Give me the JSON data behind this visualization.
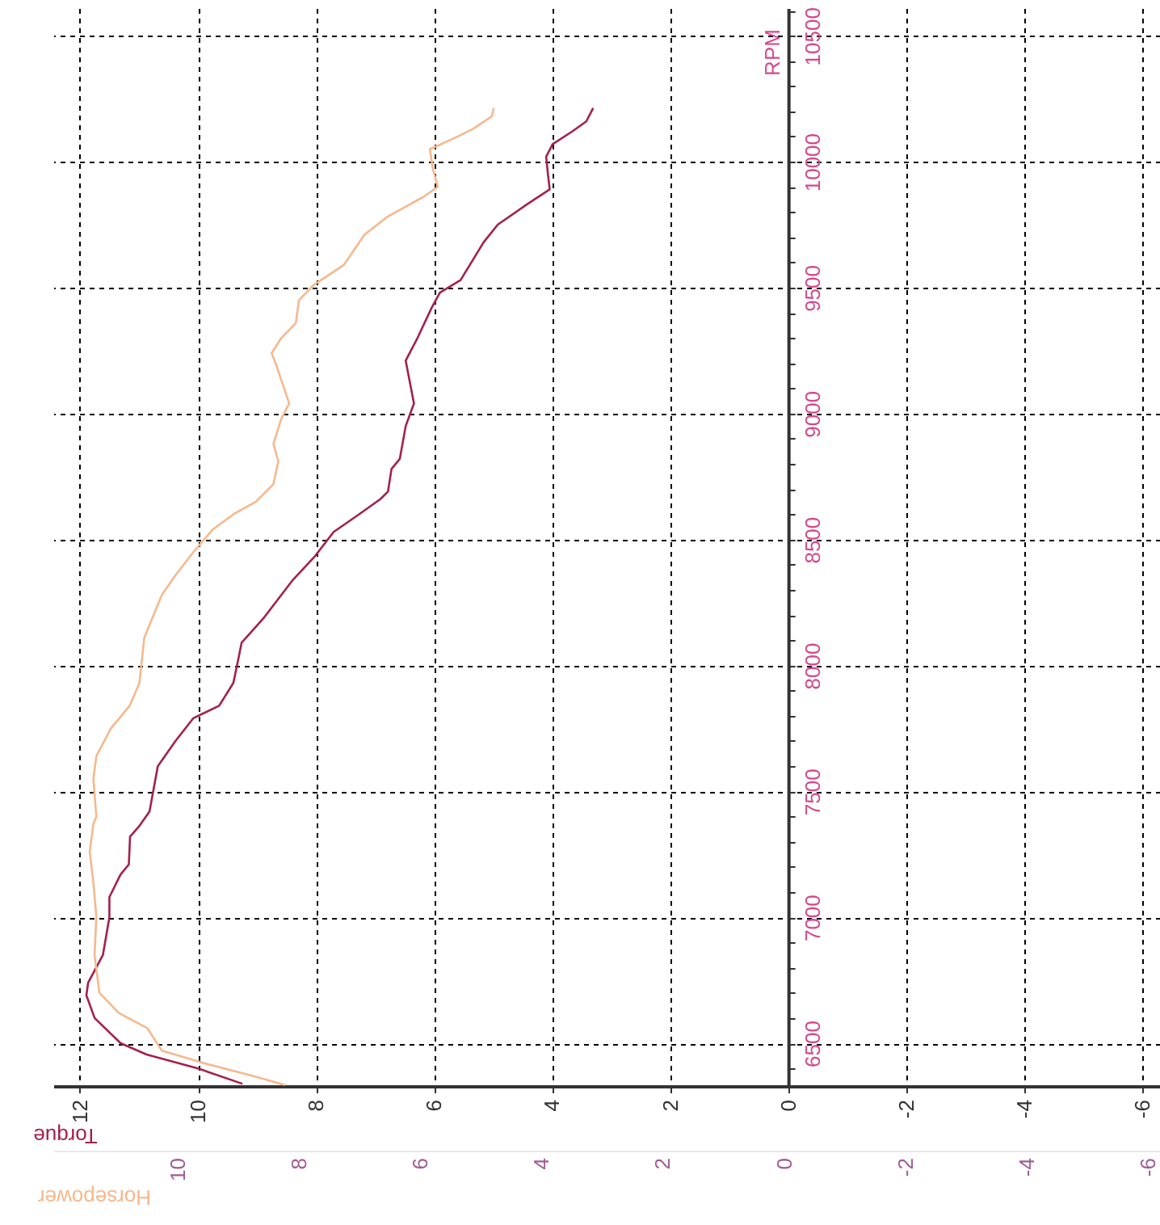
{
  "chart_data": {
    "type": "line",
    "xlabel": "Torque",
    "x2label": "Horsepower",
    "ylabel": "RPM",
    "xlim": [
      12.45,
      -6.3
    ],
    "xticks": [
      12,
      10,
      8,
      6,
      4,
      2,
      0,
      -2,
      -4,
      -6
    ],
    "x2lim": [
      12.05,
      -6.2
    ],
    "x2ticks": [
      10,
      8,
      6,
      4,
      2,
      0,
      -2,
      -4,
      -6
    ],
    "ylim": [
      6330,
      10610
    ],
    "yticks": [
      {
        "value": 6400,
        "label": null
      },
      6500,
      {
        "value": 6600,
        "label": null
      },
      {
        "value": 6700,
        "label": null
      },
      {
        "value": 6800,
        "label": null
      },
      {
        "value": 6900,
        "label": null
      },
      7000,
      {
        "value": 7100,
        "label": null
      },
      {
        "value": 7200,
        "label": null
      },
      {
        "value": 7300,
        "label": null
      },
      {
        "value": 7400,
        "label": null
      },
      7500,
      {
        "value": 7600,
        "label": null
      },
      {
        "value": 7700,
        "label": null
      },
      {
        "value": 7800,
        "label": null
      },
      {
        "value": 7900,
        "label": null
      },
      8000,
      {
        "value": 8100,
        "label": null
      },
      {
        "value": 8200,
        "label": null
      },
      {
        "value": 8300,
        "label": null
      },
      {
        "value": 8400,
        "label": null
      },
      8500,
      {
        "value": 8600,
        "label": null
      },
      {
        "value": 8700,
        "label": null
      },
      {
        "value": 8800,
        "label": null
      },
      {
        "value": 8900,
        "label": null
      },
      9000,
      {
        "value": 9100,
        "label": null
      },
      {
        "value": 9200,
        "label": null
      },
      {
        "value": 9300,
        "label": null
      },
      {
        "value": 9400,
        "label": null
      },
      9500,
      {
        "value": 9600,
        "label": null
      },
      {
        "value": 9700,
        "label": null
      },
      {
        "value": 9800,
        "label": null
      },
      {
        "value": 9900,
        "label": null
      },
      10000,
      {
        "value": 10100,
        "label": null
      },
      {
        "value": 10200,
        "label": null
      },
      {
        "value": 10300,
        "label": null
      },
      {
        "value": 10400,
        "label": null
      },
      10500,
      {
        "value": 10600,
        "label": null
      }
    ],
    "grid": true,
    "series": [
      {
        "color": "#a3214b",
        "x": [
          9.26,
          10.0,
          10.87,
          11.31,
          11.75,
          11.89,
          11.86,
          11.61,
          11.5,
          11.5,
          11.31,
          11.17,
          11.15,
          11.0,
          10.82,
          10.68,
          10.38,
          10.08,
          9.64,
          9.4,
          9.32,
          9.26,
          8.88,
          8.39,
          8.03,
          7.7,
          7.27,
          6.91,
          6.78,
          6.72,
          6.58,
          6.48,
          6.34,
          6.48,
          6.28,
          6.04,
          5.9,
          5.55,
          5.16,
          4.92,
          4.43,
          4.04,
          4.07,
          4.1,
          3.99,
          3.66,
          3.42,
          3.31
        ],
        "values": [
          6340,
          6400,
          6455,
          6500,
          6600,
          6690,
          6740,
          6850,
          7000,
          7080,
          7170,
          7210,
          7320,
          7360,
          7420,
          7600,
          7700,
          7790,
          7840,
          7930,
          8020,
          8090,
          8190,
          8340,
          8430,
          8530,
          8600,
          8660,
          8690,
          8780,
          8820,
          8950,
          9040,
          9210,
          9300,
          9420,
          9480,
          9530,
          9680,
          9750,
          9830,
          9890,
          9950,
          10020,
          10070,
          10120,
          10160,
          10210
        ]
      },
      {
        "color": "#f6b88d",
        "axis": "x2",
        "x": [
          8.24,
          8.76,
          9.55,
          10.26,
          10.5,
          10.97,
          11.29,
          11.37,
          11.34,
          11.39,
          11.45,
          11.39,
          11.34,
          11.39,
          11.34,
          11.1,
          10.79,
          10.63,
          10.55,
          10.26,
          10.03,
          9.74,
          9.42,
          9.08,
          8.71,
          8.42,
          8.34,
          8.42,
          8.29,
          8.16,
          8.37,
          8.45,
          8.29,
          8.05,
          8.0,
          7.76,
          7.26,
          6.92,
          6.55,
          5.95,
          5.71,
          5.79,
          5.84,
          5.47,
          5.13,
          4.82,
          4.79
        ],
        "values": [
          6335,
          6370,
          6420,
          6470,
          6560,
          6620,
          6700,
          6850,
          7000,
          7140,
          7260,
          7370,
          7400,
          7550,
          7640,
          7750,
          7840,
          7930,
          8110,
          8280,
          8360,
          8450,
          8540,
          8600,
          8650,
          8720,
          8810,
          8880,
          8980,
          9040,
          9190,
          9240,
          9300,
          9360,
          9450,
          9510,
          9590,
          9710,
          9780,
          9860,
          9900,
          9970,
          10050,
          10090,
          10130,
          10180,
          10210
        ]
      }
    ]
  }
}
